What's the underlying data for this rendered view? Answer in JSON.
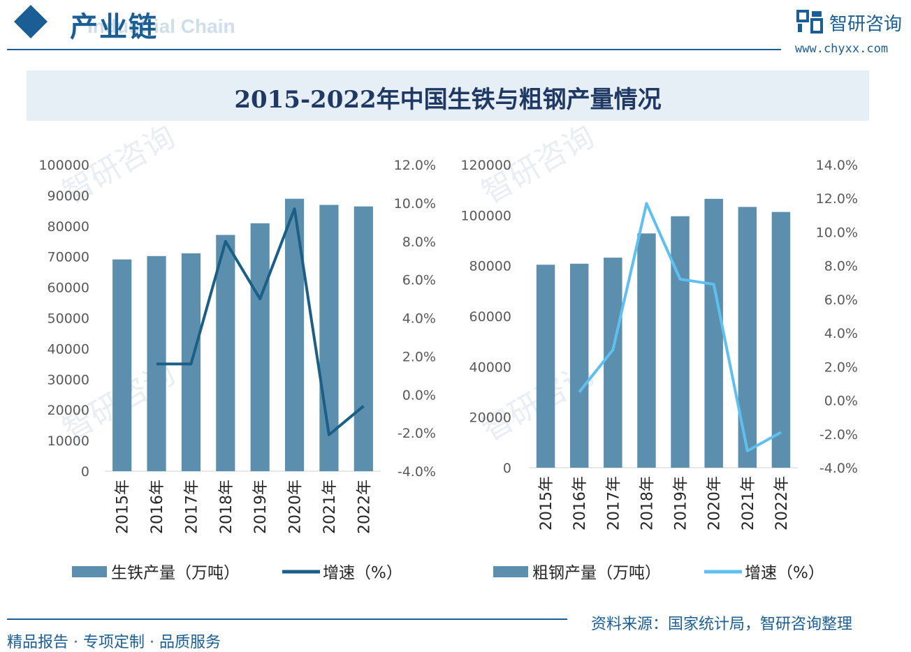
{
  "header": {
    "title": "产业链",
    "subtitle": "Industrial Chain",
    "logo_text": "智研咨询",
    "url": "www.chyxx.com"
  },
  "banner": {
    "title": "2015-2022年中国生铁与粗钢产量情况"
  },
  "footer": {
    "left": "精品报告 · 专项定制 · 品质服务",
    "right": "资料来源：国家统计局，智研咨询整理"
  },
  "watermark": {
    "text": "智研咨询"
  },
  "colors": {
    "brand": "#1b5e96",
    "bar": "#5b8fad",
    "line_left": "#1b5e86",
    "line_right": "#5fc0f0"
  },
  "chart_data": [
    {
      "type": "bar",
      "categories": [
        "2015年",
        "2016年",
        "2017年",
        "2018年",
        "2019年",
        "2020年",
        "2021年",
        "2022年"
      ],
      "series": [
        {
          "name": "生铁产量（万吨）",
          "type": "bar",
          "axis": "left",
          "values": [
            69100,
            70200,
            71100,
            77100,
            80900,
            88900,
            86900,
            86400
          ]
        },
        {
          "name": "增速（%）",
          "type": "line",
          "axis": "right",
          "values": [
            null,
            1.6,
            1.6,
            8.0,
            5.0,
            9.7,
            -2.1,
            -0.6
          ]
        }
      ],
      "y_left": {
        "min": 0,
        "max": 100000,
        "step": 10000,
        "ticks": [
          "0",
          "10000",
          "20000",
          "30000",
          "40000",
          "50000",
          "60000",
          "70000",
          "80000",
          "90000",
          "100000"
        ]
      },
      "y_right": {
        "min": -4,
        "max": 12,
        "step": 2,
        "ticks": [
          "-4.0%",
          "-2.0%",
          "0.0%",
          "2.0%",
          "4.0%",
          "6.0%",
          "8.0%",
          "10.0%",
          "12.0%"
        ]
      },
      "legend": [
        "生铁产量（万吨）",
        "增速（%）"
      ]
    },
    {
      "type": "bar",
      "categories": [
        "2015年",
        "2016年",
        "2017年",
        "2018年",
        "2019年",
        "2020年",
        "2021年",
        "2022年"
      ],
      "series": [
        {
          "name": "粗钢产量（万吨）",
          "type": "bar",
          "axis": "left",
          "values": [
            80400,
            80800,
            83200,
            92800,
            99600,
            106500,
            103300,
            101300
          ]
        },
        {
          "name": "增速（%）",
          "type": "line",
          "axis": "right",
          "values": [
            null,
            0.5,
            3.0,
            11.7,
            7.2,
            6.9,
            -3.0,
            -1.9
          ]
        }
      ],
      "y_left": {
        "min": 0,
        "max": 120000,
        "step": 20000,
        "ticks": [
          "0",
          "20000",
          "40000",
          "60000",
          "80000",
          "100000",
          "120000"
        ]
      },
      "y_right": {
        "min": -4,
        "max": 14,
        "step": 2,
        "ticks": [
          "-4.0%",
          "-2.0%",
          "0.0%",
          "2.0%",
          "4.0%",
          "6.0%",
          "8.0%",
          "10.0%",
          "12.0%",
          "14.0%"
        ]
      },
      "legend": [
        "粗钢产量（万吨）",
        "增速（%）"
      ]
    }
  ]
}
